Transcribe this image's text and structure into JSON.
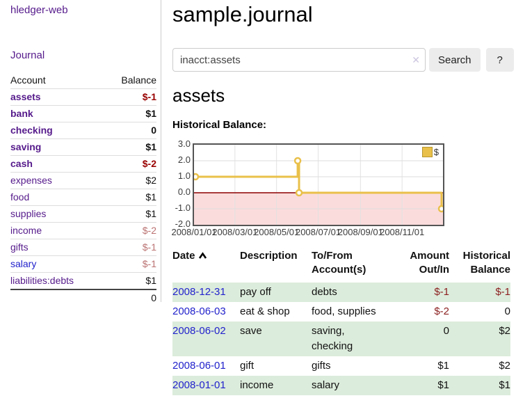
{
  "sidebar": {
    "brand": "hledger-web",
    "journal_label": "Journal",
    "accounts_table": {
      "account_header": "Account",
      "balance_header": "Balance",
      "rows": [
        {
          "name": "assets",
          "balance": "$-1",
          "depth": 1,
          "bold": true,
          "balance_style": "negative-strong",
          "link_style": "purple"
        },
        {
          "name": "bank",
          "balance": "$1",
          "depth": 2,
          "bold": true,
          "balance_style": "normal",
          "link_style": "purple"
        },
        {
          "name": "checking",
          "balance": "0",
          "depth": 3,
          "bold": true,
          "balance_style": "normal",
          "link_style": "purple"
        },
        {
          "name": "saving",
          "balance": "$1",
          "depth": 3,
          "bold": true,
          "balance_style": "normal",
          "link_style": "purple"
        },
        {
          "name": "cash",
          "balance": "$-2",
          "depth": 2,
          "bold": true,
          "balance_style": "negative-strong",
          "link_style": "purple"
        },
        {
          "name": "expenses",
          "balance": "$2",
          "depth": 1,
          "bold": false,
          "balance_style": "normal",
          "link_style": "purple"
        },
        {
          "name": "food",
          "balance": "$1",
          "depth": 2,
          "bold": false,
          "balance_style": "normal",
          "link_style": "purple"
        },
        {
          "name": "supplies",
          "balance": "$1",
          "depth": 2,
          "bold": false,
          "balance_style": "normal",
          "link_style": "purple"
        },
        {
          "name": "income",
          "balance": "$-2",
          "depth": 1,
          "bold": false,
          "balance_style": "negative-soft",
          "link_style": "purple"
        },
        {
          "name": "gifts",
          "balance": "$-1",
          "depth": 2,
          "bold": false,
          "balance_style": "negative-soft",
          "link_style": "purple"
        },
        {
          "name": "salary",
          "balance": "$-1",
          "depth": 2,
          "bold": false,
          "balance_style": "negative-soft",
          "link_style": "blue"
        },
        {
          "name": "liabilities:debts",
          "balance": "$1",
          "depth": 1,
          "bold": false,
          "balance_style": "normal",
          "link_style": "purple"
        }
      ],
      "total": "0"
    }
  },
  "main": {
    "title": "sample.journal",
    "search": {
      "value": "inacct:assets",
      "clear_label": "✕",
      "search_button": "Search",
      "help_button": "?"
    },
    "account_heading": "assets",
    "chart_heading": "Historical Balance:"
  },
  "chart_data": {
    "type": "line",
    "step": true,
    "title": "Historical Balance",
    "series": [
      {
        "name": "$",
        "color": "#e9c04a",
        "points": [
          {
            "date": "2008-01-01",
            "value": 1
          },
          {
            "date": "2008-06-01",
            "value": 2
          },
          {
            "date": "2008-06-03",
            "value": 0
          },
          {
            "date": "2008-12-31",
            "value": -1
          }
        ]
      }
    ],
    "x_domain": [
      "2008-01-01",
      "2008-12-31"
    ],
    "x_tick_dates": [
      "2008-01-01",
      "2008-03-01",
      "2008-05-01",
      "2008-07-01",
      "2008-09-01",
      "2008-11-01"
    ],
    "x_tick_labels": [
      "2008/01/01",
      "2008/03/01",
      "2008/05/01",
      "2008/07/01",
      "2008/09/01",
      "2008/11/01"
    ],
    "y_ticks": [
      "3.0",
      "2.0",
      "1.0",
      "0.0",
      "-1.0",
      "-2.0"
    ],
    "ylim": [
      -2,
      3
    ],
    "grid": true,
    "legend": {
      "label": "$",
      "position": "top-right"
    },
    "negative_region": true
  },
  "register": {
    "headers": {
      "date": "Date",
      "description": "Description",
      "account": "To/From\nAccount(s)",
      "amount": "Amount\nOut/In",
      "balance": "Historical\nBalance"
    },
    "sort_icon": "chevron-up",
    "rows": [
      {
        "date": "2008-12-31",
        "description": "pay off",
        "accounts": "debts",
        "amount": "$-1",
        "balance": "$-1",
        "amount_negative": true,
        "balance_negative": true,
        "shaded": true
      },
      {
        "date": "2008-06-03",
        "description": "eat & shop",
        "accounts": "food, supplies",
        "amount": "$-2",
        "balance": "0",
        "amount_negative": true,
        "balance_negative": false,
        "shaded": false
      },
      {
        "date": "2008-06-02",
        "description": "save",
        "accounts": "saving,\nchecking",
        "amount": "0",
        "balance": "$2",
        "amount_negative": false,
        "balance_negative": false,
        "shaded": true
      },
      {
        "date": "2008-06-01",
        "description": "gift",
        "accounts": "gifts",
        "amount": "$1",
        "balance": "$2",
        "amount_negative": false,
        "balance_negative": false,
        "shaded": false
      },
      {
        "date": "2008-01-01",
        "description": "income",
        "accounts": "salary",
        "amount": "$1",
        "balance": "$1",
        "amount_negative": false,
        "balance_negative": false,
        "shaded": true
      }
    ]
  },
  "colors": {
    "link_purple": "#551a8b",
    "link_blue": "#2222cc",
    "negative_strong": "#990000",
    "negative_soft": "#bb7272",
    "register_negative": "#8b1f1f",
    "row_shade_green": "#dcecdc",
    "chart_line": "#e9c04a",
    "chart_negative_fill": "#fbdcdc",
    "chart_zero_line": "#8b0000",
    "chart_border": "#545454"
  }
}
